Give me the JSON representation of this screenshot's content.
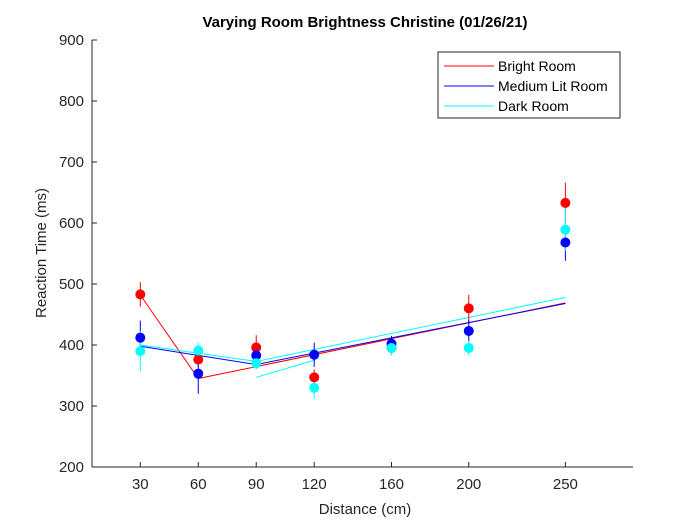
{
  "chart_data": {
    "type": "scatter",
    "title": "Varying Room Brightness Christine (01/26/21)",
    "xlabel": "Distance (cm)",
    "ylabel": "Reaction Time (ms)",
    "xlim": [
      5,
      285
    ],
    "ylim": [
      200,
      900
    ],
    "xticks": [
      30,
      60,
      90,
      120,
      160,
      200,
      250
    ],
    "yticks": [
      200,
      300,
      400,
      500,
      600,
      700,
      800,
      900
    ],
    "legend_position": "top-right",
    "x": [
      30,
      60,
      90,
      120,
      160,
      200,
      250
    ],
    "series": [
      {
        "name": "Bright Room",
        "color": "#ff0000",
        "values": [
          483,
          376,
          396,
          347,
          395,
          460,
          633
        ],
        "error": [
          20,
          13,
          20,
          13,
          12,
          22,
          33
        ],
        "fit_line": {
          "x": [
            30,
            60,
            250
          ],
          "y": [
            482,
            345,
            469
          ]
        }
      },
      {
        "name": "Medium Lit Room",
        "color": "#0000ff",
        "values": [
          412,
          353,
          383,
          384,
          402,
          423,
          568
        ],
        "error": [
          28,
          33,
          13,
          20,
          13,
          18,
          30
        ],
        "fit_line": {
          "x": [
            30,
            90,
            250
          ],
          "y": [
            398,
            368,
            468
          ]
        }
      },
      {
        "name": "Dark Room",
        "color": "#00ffff",
        "values": [
          390,
          391,
          370,
          330,
          395,
          395,
          589
        ],
        "error": [
          33,
          13,
          10,
          18,
          12,
          12,
          35
        ],
        "fit_line": {
          "x": [
            30,
            90,
            250
          ],
          "y": [
            400,
            373,
            478
          ],
          "x_extra": [
            90,
            120
          ],
          "y_extra": [
            347,
            375
          ]
        }
      }
    ]
  }
}
